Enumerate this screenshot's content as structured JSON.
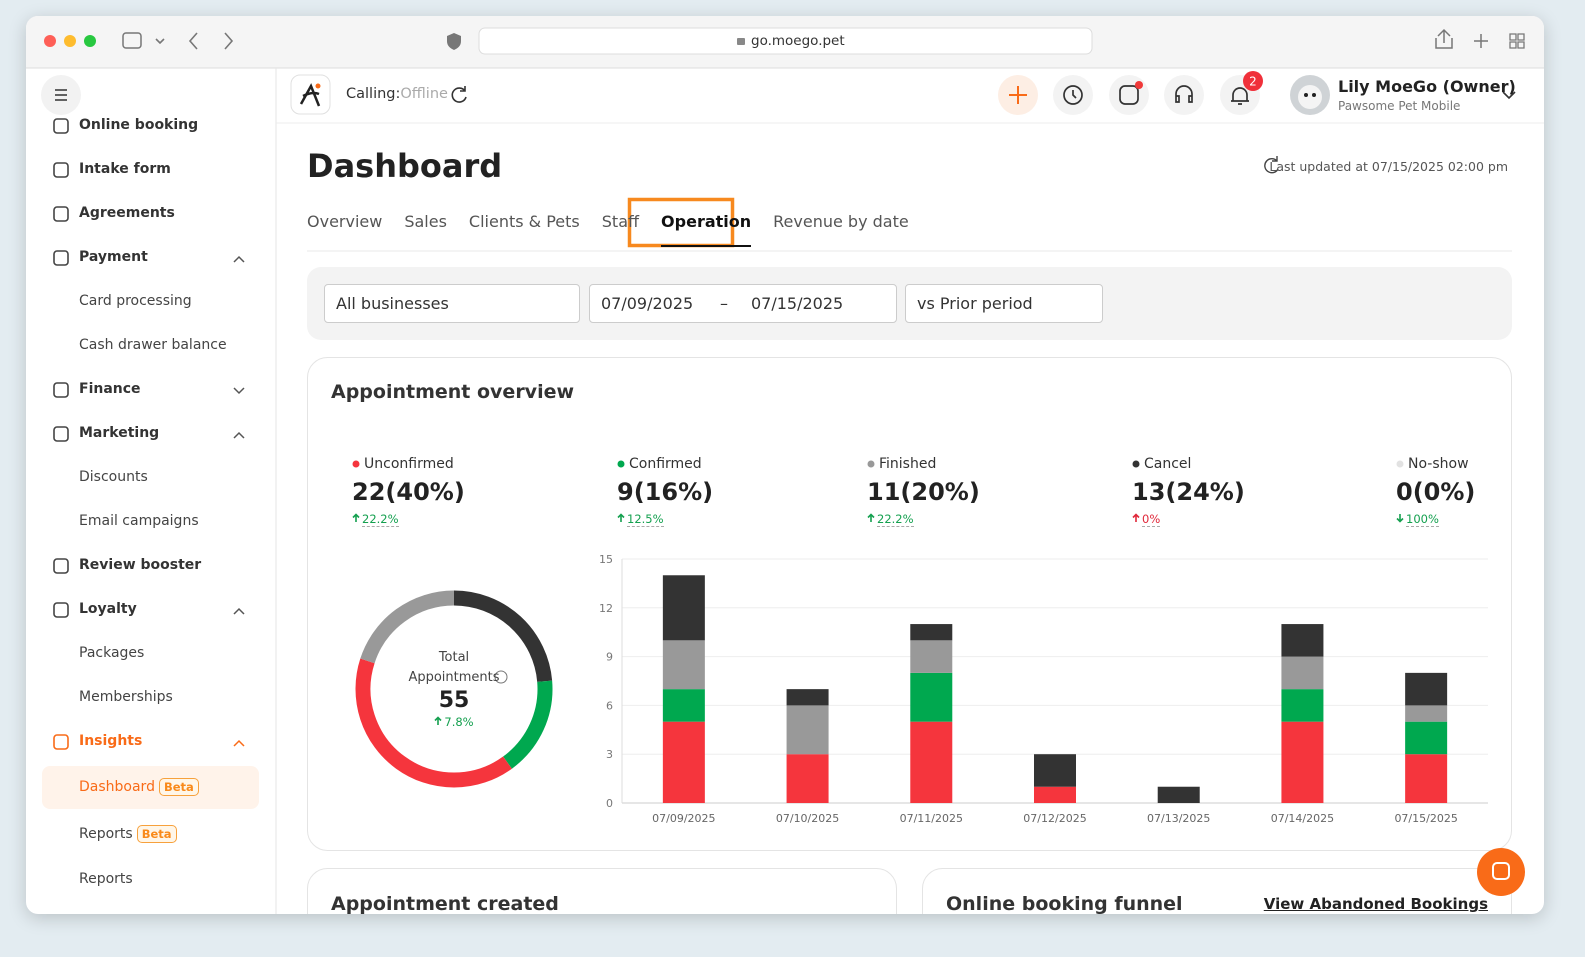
{
  "browser": {
    "url": "go.moego.pet"
  },
  "sidebar": {
    "items": [
      {
        "label": "Online booking",
        "level": 1
      },
      {
        "label": "Intake form",
        "level": 1
      },
      {
        "label": "Agreements",
        "level": 1
      },
      {
        "label": "Payment",
        "level": 1,
        "expanded": true
      },
      {
        "label": "Card processing",
        "level": 2
      },
      {
        "label": "Cash drawer balance",
        "level": 2
      },
      {
        "label": "Finance",
        "level": 1,
        "expanded": false
      },
      {
        "label": "Marketing",
        "level": 1,
        "expanded": true
      },
      {
        "label": "Discounts",
        "level": 2
      },
      {
        "label": "Email campaigns",
        "level": 2
      },
      {
        "label": "Review booster",
        "level": 1
      },
      {
        "label": "Loyalty",
        "level": 1,
        "expanded": true
      },
      {
        "label": "Packages",
        "level": 2
      },
      {
        "label": "Memberships",
        "level": 2
      },
      {
        "label": "Insights",
        "level": 1,
        "expanded": true,
        "active": true
      },
      {
        "label": "Dashboard",
        "level": 2,
        "badge": "Beta",
        "selected": true
      },
      {
        "label": "Reports",
        "level": 2,
        "badge": "Beta"
      },
      {
        "label": "Reports",
        "level": 2
      }
    ]
  },
  "header": {
    "calling_label": "Calling:",
    "calling_status": "Offline",
    "notification_count": 2,
    "user_name": "Lily MoeGo (Owner)",
    "business_name": "Pawsome Pet Mobile"
  },
  "page": {
    "title": "Dashboard",
    "last_updated": "Last updated at 07/15/2025 02:00 pm",
    "tabs": [
      "Overview",
      "Sales",
      "Clients & Pets",
      "Staff",
      "Operation",
      "Revenue by date"
    ],
    "active_tab": 4,
    "filters": {
      "business": "All businesses",
      "start_date": "07/09/2025",
      "date_separator": "–",
      "end_date": "07/15/2025",
      "comparison": "vs Prior period"
    },
    "cards": [
      "Appointment created",
      "Online booking funnel"
    ],
    "link": "View Abandoned Bookings"
  },
  "chart_data": {
    "type": "stacked_bar",
    "title": "Appointment overview",
    "categories": [
      "07/09/2025",
      "07/10/2025",
      "07/11/2025",
      "07/12/2025",
      "07/13/2025",
      "07/14/2025",
      "07/15/2025"
    ],
    "series": [
      {
        "name": "Unconfirmed",
        "color": "#f5353d",
        "values": [
          5,
          3,
          5,
          1,
          0,
          5,
          3
        ],
        "total": 22,
        "total_label": "22(40%)",
        "change": "22.2%",
        "trend": "up",
        "change_color": "#14a04f"
      },
      {
        "name": "Confirmed",
        "color": "#00a84f",
        "values": [
          2,
          0,
          3,
          0,
          0,
          2,
          2
        ],
        "total": 9,
        "total_label": "9(16%)",
        "change": "12.5%",
        "trend": "up",
        "change_color": "#14a04f"
      },
      {
        "name": "Finished",
        "color": "#999999",
        "values": [
          3,
          3,
          2,
          0,
          0,
          2,
          1
        ],
        "total": 11,
        "total_label": "11(20%)",
        "change": "22.2%",
        "trend": "up",
        "change_color": "#14a04f"
      },
      {
        "name": "Cancel",
        "color": "#333333",
        "values": [
          4,
          1,
          1,
          2,
          1,
          2,
          2
        ],
        "total": 13,
        "total_label": "13(24%)",
        "change": "0%",
        "trend": "up",
        "change_color": "#e0283a"
      },
      {
        "name": "No-show",
        "color": "#e2e2e2",
        "values": [
          0,
          0,
          0,
          0,
          0,
          0,
          0
        ],
        "total": 0,
        "total_label": "0(0%)",
        "change": "100%",
        "trend": "down",
        "change_color": "#14a04f"
      }
    ],
    "ylim": [
      0,
      15
    ],
    "yticks": [
      0,
      3,
      6,
      9,
      12,
      15
    ],
    "grid": true,
    "donut": {
      "label": "Total Appointments",
      "total": 55,
      "change": "7.8%",
      "trend": "up",
      "order": [
        3,
        1,
        0,
        2,
        4
      ]
    }
  }
}
